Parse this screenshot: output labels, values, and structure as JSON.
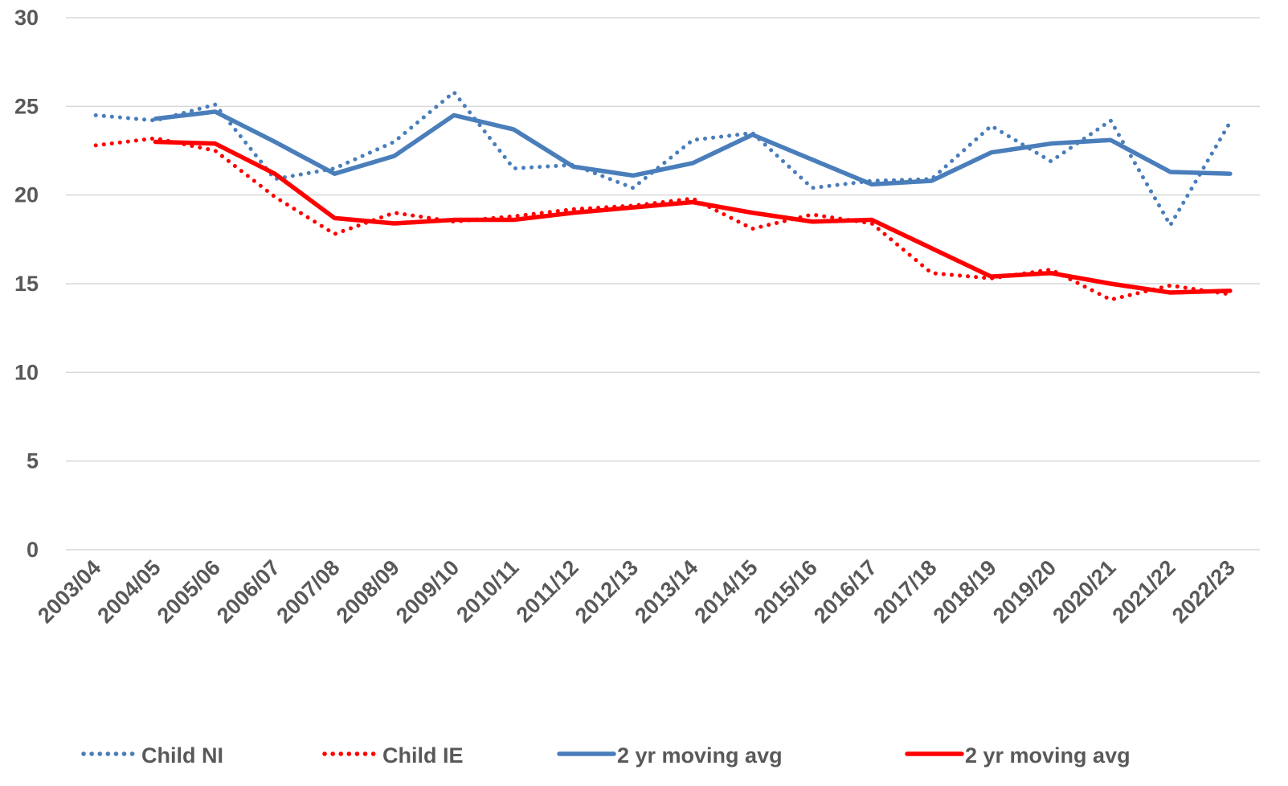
{
  "chart_data": {
    "type": "line",
    "categories": [
      "2003/04",
      "2004/05",
      "2005/06",
      "2006/07",
      "2007/08",
      "2008/09",
      "2009/10",
      "2010/11",
      "2011/12",
      "2012/13",
      "2013/14",
      "2014/15",
      "2015/16",
      "2016/17",
      "2017/18",
      "2018/19",
      "2019/20",
      "2020/21",
      "2021/22",
      "2022/23"
    ],
    "series": [
      {
        "name": "Child NI",
        "color": "#4a7ebb",
        "style": "dotted",
        "values": [
          24.5,
          24.2,
          25.1,
          20.9,
          21.5,
          23.0,
          25.8,
          21.5,
          21.7,
          20.4,
          23.1,
          23.5,
          20.4,
          20.8,
          20.9,
          23.9,
          21.9,
          24.2,
          18.3,
          24.1
        ]
      },
      {
        "name": "Child IE",
        "color": "#ff0000",
        "style": "dotted",
        "values": [
          22.8,
          23.2,
          22.5,
          19.9,
          17.8,
          19.0,
          18.5,
          18.8,
          19.2,
          19.4,
          19.8,
          18.1,
          18.9,
          18.4,
          15.6,
          15.3,
          15.8,
          14.1,
          14.9,
          14.4
        ]
      },
      {
        "name": "2 yr moving avg",
        "color": "#4a7ebb",
        "style": "solid",
        "values": [
          null,
          24.3,
          24.7,
          23.0,
          21.2,
          22.2,
          24.5,
          23.7,
          21.6,
          21.1,
          21.8,
          23.4,
          22.0,
          20.6,
          20.8,
          22.4,
          22.9,
          23.1,
          21.3,
          21.2
        ]
      },
      {
        "name": "2 yr moving avg",
        "color": "#ff0000",
        "style": "solid",
        "values": [
          null,
          23.0,
          22.9,
          21.2,
          18.7,
          18.4,
          18.6,
          18.6,
          19.0,
          19.3,
          19.6,
          19.0,
          18.5,
          18.6,
          17.0,
          15.4,
          15.6,
          15.0,
          14.5,
          14.6
        ]
      }
    ],
    "ylim": [
      0,
      30
    ],
    "yticks": [
      0,
      5,
      10,
      15,
      20,
      25,
      30
    ],
    "grid": true,
    "legend": "bottom"
  }
}
